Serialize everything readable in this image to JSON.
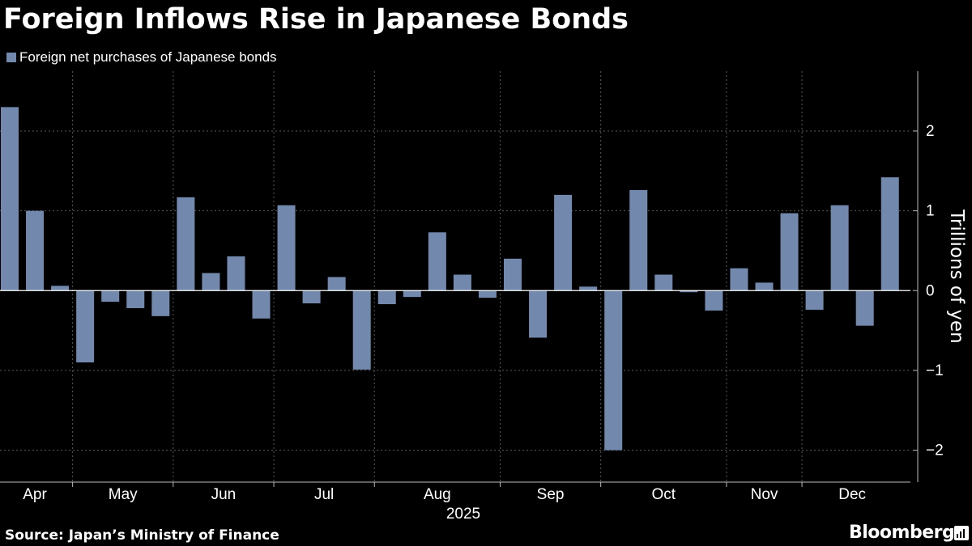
{
  "header": {
    "title": "Foreign Inflows Rise in Japanese Bonds"
  },
  "legend": {
    "label": "Foreign net purchases of Japanese bonds",
    "color": "#7289ad"
  },
  "footer": {
    "source": "Source: Japan’s Ministry of Finance",
    "brand": "Bloomberg",
    "brand_icon": "bloomberg-terminal-icon"
  },
  "chart_data": {
    "type": "bar",
    "title": "Foreign Inflows Rise in Japanese Bonds",
    "xlabel": "2025",
    "ylabel": "Trillions of yen",
    "ylim": [
      -2.4,
      2.75
    ],
    "yticks": [
      -2,
      -1,
      0,
      1,
      2
    ],
    "ytick_labels": [
      "−2",
      "−1",
      "0",
      "1",
      "2"
    ],
    "grid": true,
    "axis_side": "right",
    "legend_position": "top-left",
    "bar_color": "#7289ad",
    "months": [
      "Apr",
      "May",
      "Jun",
      "Jul",
      "Aug",
      "Sep",
      "Oct",
      "Nov",
      "Dec"
    ],
    "month_of_bar": [
      0,
      0,
      0,
      1,
      1,
      1,
      1,
      2,
      2,
      2,
      2,
      3,
      3,
      3,
      3,
      4,
      4,
      4,
      4,
      4,
      5,
      5,
      5,
      5,
      6,
      6,
      6,
      6,
      6,
      7,
      7,
      7,
      8,
      8,
      8,
      8
    ],
    "series": [
      {
        "name": "Foreign net purchases of Japanese bonds",
        "values": [
          2.3,
          1.0,
          0.06,
          -0.9,
          -0.14,
          -0.22,
          -0.32,
          1.17,
          0.22,
          0.43,
          -0.35,
          1.07,
          -0.16,
          0.17,
          -0.99,
          -0.17,
          -0.08,
          0.73,
          0.2,
          -0.09,
          0.4,
          -0.59,
          1.2,
          0.05,
          -2.0,
          1.26,
          0.2,
          -0.02,
          -0.25,
          0.28,
          0.1,
          0.97,
          -0.24,
          1.07,
          -0.44,
          1.42
        ]
      }
    ]
  }
}
